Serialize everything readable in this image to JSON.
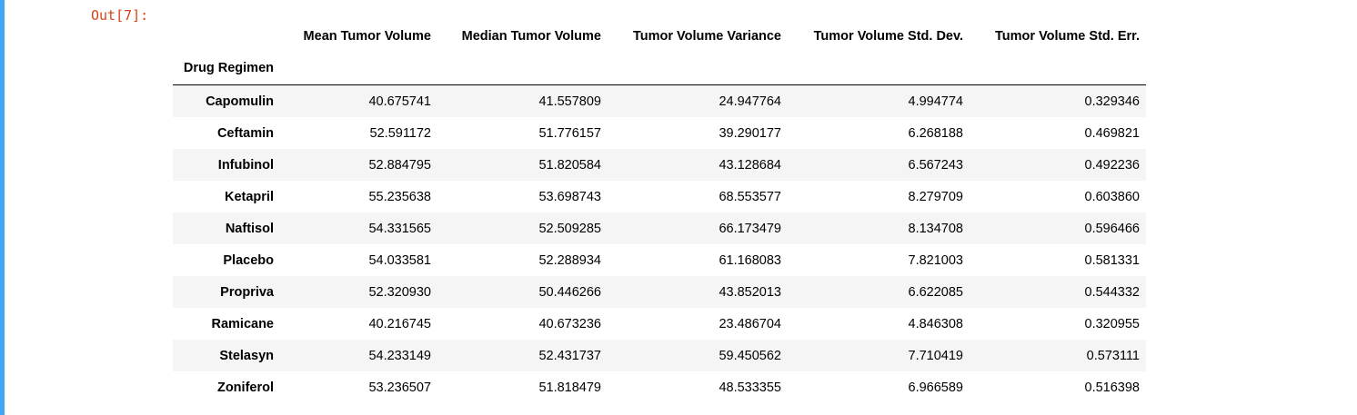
{
  "prompt": "Out[7]:",
  "table": {
    "index_name": "Drug Regimen",
    "columns": [
      "Mean Tumor Volume",
      "Median Tumor Volume",
      "Tumor Volume Variance",
      "Tumor Volume Std. Dev.",
      "Tumor Volume Std. Err."
    ],
    "rows": [
      {
        "index": "Capomulin",
        "values": [
          "40.675741",
          "41.557809",
          "24.947764",
          "4.994774",
          "0.329346"
        ]
      },
      {
        "index": "Ceftamin",
        "values": [
          "52.591172",
          "51.776157",
          "39.290177",
          "6.268188",
          "0.469821"
        ]
      },
      {
        "index": "Infubinol",
        "values": [
          "52.884795",
          "51.820584",
          "43.128684",
          "6.567243",
          "0.492236"
        ]
      },
      {
        "index": "Ketapril",
        "values": [
          "55.235638",
          "53.698743",
          "68.553577",
          "8.279709",
          "0.603860"
        ]
      },
      {
        "index": "Naftisol",
        "values": [
          "54.331565",
          "52.509285",
          "66.173479",
          "8.134708",
          "0.596466"
        ]
      },
      {
        "index": "Placebo",
        "values": [
          "54.033581",
          "52.288934",
          "61.168083",
          "7.821003",
          "0.581331"
        ]
      },
      {
        "index": "Propriva",
        "values": [
          "52.320930",
          "50.446266",
          "43.852013",
          "6.622085",
          "0.544332"
        ]
      },
      {
        "index": "Ramicane",
        "values": [
          "40.216745",
          "40.673236",
          "23.486704",
          "4.846308",
          "0.320955"
        ]
      },
      {
        "index": "Stelasyn",
        "values": [
          "54.233149",
          "52.431737",
          "59.450562",
          "7.710419",
          "0.573111"
        ]
      },
      {
        "index": "Zoniferol",
        "values": [
          "53.236507",
          "51.818479",
          "48.533355",
          "6.966589",
          "0.516398"
        ]
      }
    ]
  },
  "colors": {
    "cell_border": "#42a5f5",
    "prompt": "#d84315",
    "row_stripe": "#f5f5f5"
  }
}
